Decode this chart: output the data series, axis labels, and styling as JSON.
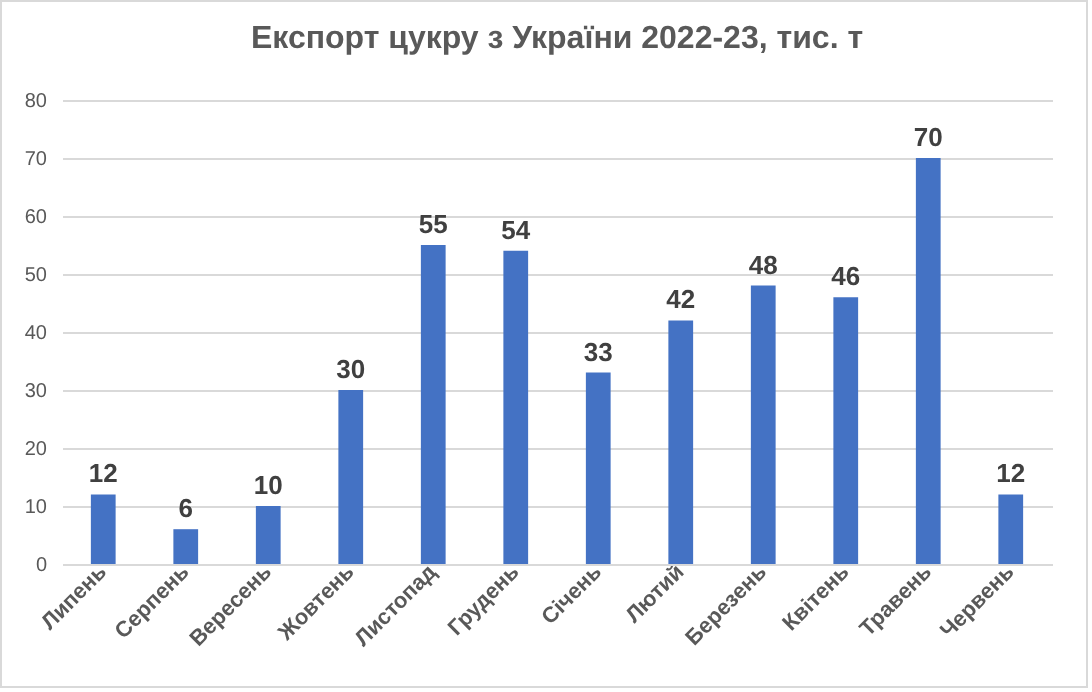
{
  "chart_data": {
    "type": "bar",
    "title": "Експорт цукру з України 2022-23, тис. т",
    "categories": [
      "Липень",
      "Серпень",
      "Вересень",
      "Жовтень",
      "Листопад",
      "Грудень",
      "Січень",
      "Лютий",
      "Березень",
      "Квітень",
      "Травень",
      "Червень"
    ],
    "values": [
      12,
      6,
      10,
      30,
      55,
      54,
      33,
      42,
      48,
      46,
      70,
      12
    ],
    "color": "#4472c4",
    "ylim": [
      0,
      80
    ],
    "yticks": [
      0,
      10,
      20,
      30,
      40,
      50,
      60,
      70,
      80
    ],
    "grid": "y",
    "data_labels": true
  }
}
